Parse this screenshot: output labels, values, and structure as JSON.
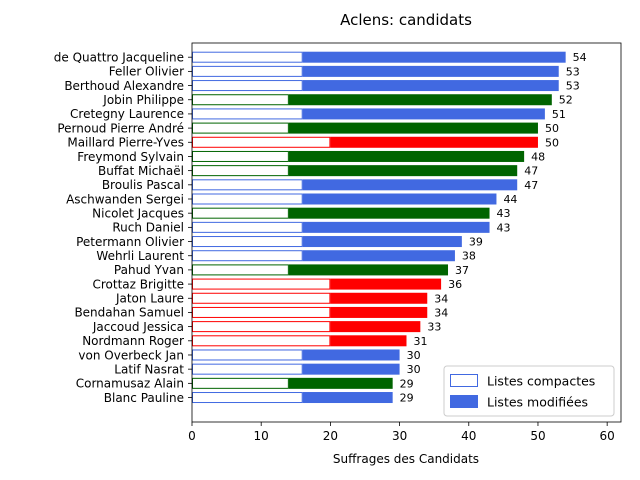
{
  "chart_data": {
    "type": "bar",
    "orientation": "horizontal",
    "title": "Aclens: candidats",
    "xlabel": "Suffrages des Candidats",
    "ylabel": "",
    "xlim": [
      0,
      62
    ],
    "xticks": [
      0,
      10,
      20,
      30,
      40,
      50,
      60
    ],
    "grid": false,
    "legend_position": "lower-right",
    "legend": [
      {
        "key": "compact",
        "label": "Listes compactes",
        "style": "outline"
      },
      {
        "key": "modified",
        "label": "Listes modifiées",
        "style": "filled"
      }
    ],
    "colors": {
      "blue": "#4169e1",
      "green": "#006400",
      "red": "#ff0000",
      "legend": "#4169e1"
    },
    "candidates": [
      {
        "name": "de Quattro Jacqueline",
        "compact": 16,
        "total": 54,
        "color": "blue"
      },
      {
        "name": "Feller Olivier",
        "compact": 16,
        "total": 53,
        "color": "blue"
      },
      {
        "name": "Berthoud Alexandre",
        "compact": 16,
        "total": 53,
        "color": "blue"
      },
      {
        "name": "Jobin Philippe",
        "compact": 14,
        "total": 52,
        "color": "green"
      },
      {
        "name": "Cretegny Laurence",
        "compact": 16,
        "total": 51,
        "color": "blue"
      },
      {
        "name": "Pernoud Pierre André",
        "compact": 14,
        "total": 50,
        "color": "green"
      },
      {
        "name": "Maillard Pierre-Yves",
        "compact": 20,
        "total": 50,
        "color": "red"
      },
      {
        "name": "Freymond Sylvain",
        "compact": 14,
        "total": 48,
        "color": "green"
      },
      {
        "name": "Buffat Michaël",
        "compact": 14,
        "total": 47,
        "color": "green"
      },
      {
        "name": "Broulis Pascal",
        "compact": 16,
        "total": 47,
        "color": "blue"
      },
      {
        "name": "Aschwanden Sergei",
        "compact": 16,
        "total": 44,
        "color": "blue"
      },
      {
        "name": "Nicolet Jacques",
        "compact": 14,
        "total": 43,
        "color": "green"
      },
      {
        "name": "Ruch Daniel",
        "compact": 16,
        "total": 43,
        "color": "blue"
      },
      {
        "name": "Petermann Olivier",
        "compact": 16,
        "total": 39,
        "color": "blue"
      },
      {
        "name": "Wehrli Laurent",
        "compact": 16,
        "total": 38,
        "color": "blue"
      },
      {
        "name": "Pahud Yvan",
        "compact": 14,
        "total": 37,
        "color": "green"
      },
      {
        "name": "Crottaz Brigitte",
        "compact": 20,
        "total": 36,
        "color": "red"
      },
      {
        "name": "Jaton Laure",
        "compact": 20,
        "total": 34,
        "color": "red"
      },
      {
        "name": "Bendahan Samuel",
        "compact": 20,
        "total": 34,
        "color": "red"
      },
      {
        "name": "Jaccoud Jessica",
        "compact": 20,
        "total": 33,
        "color": "red"
      },
      {
        "name": "Nordmann Roger",
        "compact": 20,
        "total": 31,
        "color": "red"
      },
      {
        "name": "von Overbeck Jan",
        "compact": 16,
        "total": 30,
        "color": "blue"
      },
      {
        "name": "Latif Nasrat",
        "compact": 16,
        "total": 30,
        "color": "blue"
      },
      {
        "name": "Cornamusaz Alain",
        "compact": 14,
        "total": 29,
        "color": "green"
      },
      {
        "name": "Blanc Pauline",
        "compact": 16,
        "total": 29,
        "color": "blue"
      }
    ]
  }
}
